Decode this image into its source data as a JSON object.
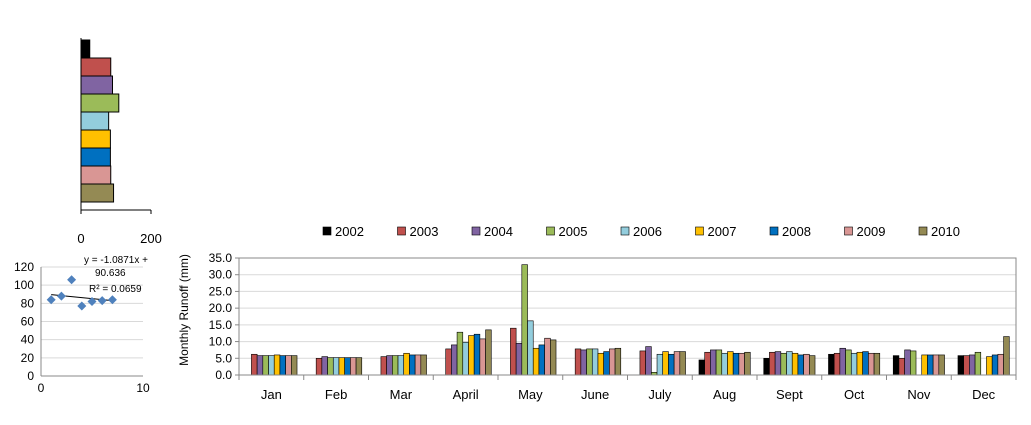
{
  "colors": {
    "2002": "#000000",
    "2003": "#c0504d",
    "2004": "#8064a2",
    "2005": "#9bbb59",
    "2006": "#93cddd",
    "2007": "#ffc000",
    "2008": "#0070c0",
    "2009": "#d99694",
    "2010": "#948a54",
    "scatter": "#4f81bd"
  },
  "chart_data": [
    {
      "id": "annual-bars",
      "type": "bar",
      "orientation": "horizontal",
      "categories": [
        "2002",
        "2003",
        "2004",
        "2005",
        "2006",
        "2007",
        "2008",
        "2009",
        "2010"
      ],
      "values": [
        25,
        85,
        90,
        108,
        79,
        84,
        84,
        85,
        93
      ],
      "xlim": [
        0,
        200
      ],
      "xticks": [
        "0",
        "200"
      ],
      "xlabel": "",
      "ylabel": ""
    },
    {
      "id": "trend-scatter",
      "type": "scatter",
      "x": [
        1,
        2,
        3,
        4,
        5,
        6,
        7
      ],
      "y": [
        84,
        88,
        106,
        77,
        82,
        83,
        84
      ],
      "xlim": [
        0,
        10
      ],
      "ylim": [
        0,
        120
      ],
      "xticks": [
        "0",
        "10"
      ],
      "yticks": [
        "0",
        "20",
        "40",
        "60",
        "80",
        "100",
        "120"
      ],
      "trendline": {
        "slope": -1.0871,
        "intercept": 90.636
      },
      "equation_line1": "y = -1.0871x +",
      "equation_line2": "90.636",
      "r2_text": "R² = 0.0659"
    },
    {
      "id": "monthly-runoff",
      "type": "bar",
      "categories": [
        "Jan",
        "Feb",
        "Mar",
        "April",
        "May",
        "June",
        "July",
        "Aug",
        "Sept",
        "Oct",
        "Nov",
        "Dec"
      ],
      "ylabel": "Monthly  Runoff (mm)",
      "ylim": [
        0,
        35
      ],
      "yticks": [
        "0.0",
        "5.0",
        "10.0",
        "15.0",
        "20.0",
        "25.0",
        "30.0",
        "35.0"
      ],
      "legend_position": "top",
      "series": [
        {
          "name": "2002",
          "values": [
            0,
            0,
            0,
            0,
            0,
            0,
            0,
            4.5,
            5.0,
            6.2,
            5.8,
            5.8
          ]
        },
        {
          "name": "2003",
          "values": [
            6.2,
            5.0,
            5.5,
            7.8,
            14.0,
            7.8,
            7.2,
            6.8,
            6.8,
            6.5,
            5.0,
            5.8
          ]
        },
        {
          "name": "2004",
          "values": [
            5.8,
            5.5,
            5.8,
            9.0,
            9.5,
            7.5,
            8.5,
            7.5,
            7.0,
            8.0,
            7.5,
            6.0
          ]
        },
        {
          "name": "2005",
          "values": [
            5.8,
            5.2,
            5.8,
            12.8,
            33.0,
            7.8,
            0.8,
            7.5,
            6.5,
            7.5,
            7.2,
            6.8
          ]
        },
        {
          "name": "2006",
          "values": [
            5.8,
            5.2,
            5.8,
            9.8,
            16.2,
            7.8,
            6.2,
            6.5,
            7.0,
            6.5,
            0,
            0
          ]
        },
        {
          "name": "2007",
          "values": [
            6.0,
            5.2,
            6.5,
            11.8,
            8.0,
            6.5,
            7.0,
            7.0,
            6.5,
            6.8,
            6.0,
            5.5
          ]
        },
        {
          "name": "2008",
          "values": [
            5.8,
            5.2,
            6.0,
            12.2,
            9.0,
            7.0,
            6.2,
            6.5,
            6.0,
            7.0,
            6.0,
            6.0
          ]
        },
        {
          "name": "2009",
          "values": [
            5.8,
            5.2,
            6.0,
            10.8,
            11.0,
            7.8,
            7.0,
            6.5,
            6.2,
            6.5,
            6.0,
            6.2
          ]
        },
        {
          "name": "2010",
          "values": [
            5.8,
            5.2,
            6.0,
            13.5,
            10.5,
            8.0,
            7.0,
            6.8,
            5.8,
            6.5,
            6.0,
            11.5
          ]
        }
      ]
    }
  ]
}
